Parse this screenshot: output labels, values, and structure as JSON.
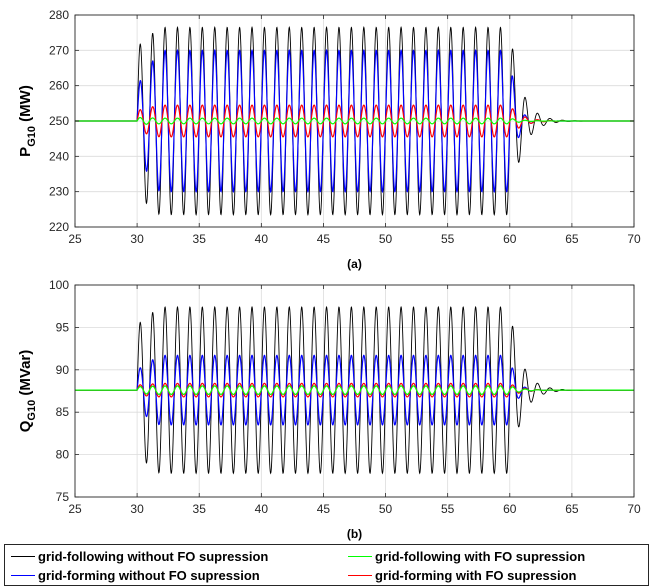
{
  "chart_data": [
    {
      "type": "line",
      "caption": "(a)",
      "ylabel_main": "P",
      "ylabel_sub": "G10",
      "ylabel_unit": " (MW)",
      "xlim": [
        25,
        70
      ],
      "ylim": [
        220,
        280
      ],
      "xticks": [
        25,
        30,
        35,
        40,
        45,
        50,
        55,
        60,
        65,
        70
      ],
      "yticks": [
        220,
        230,
        240,
        250,
        260,
        270,
        280
      ],
      "grid": true,
      "oscillation": {
        "start": 30,
        "end": 60,
        "frequency_hz": 1.0
      },
      "series": [
        {
          "name": "grid-following without FO supression",
          "color": "#000000",
          "baseline": 250,
          "amplitude": 26.5,
          "peak_first": 271,
          "decay_tail": 0.9
        },
        {
          "name": "grid-forming without FO supression",
          "color": "#0000ff",
          "baseline": 250,
          "amplitude": 20,
          "peak_first": 260,
          "decay_tail": 0.5
        },
        {
          "name": "grid-forming with FO supression",
          "color": "#ff0000",
          "baseline": 250,
          "amplitude": 4.5,
          "peak_first": 253,
          "decay_tail": 0.9
        },
        {
          "name": "grid-following with FO supression",
          "color": "#00ff00",
          "baseline": 250,
          "amplitude": 0.8,
          "peak_first": 251,
          "decay_tail": 0.9
        }
      ]
    },
    {
      "type": "line",
      "caption": "(b)",
      "ylabel_main": "Q",
      "ylabel_sub": "G10",
      "ylabel_unit": " (MVar)",
      "xlim": [
        25,
        70
      ],
      "ylim": [
        75,
        100
      ],
      "xticks": [
        25,
        30,
        35,
        40,
        45,
        50,
        55,
        60,
        65,
        70
      ],
      "yticks": [
        75,
        80,
        85,
        90,
        95,
        100
      ],
      "grid": true,
      "oscillation": {
        "start": 30,
        "end": 60,
        "frequency_hz": 1.0
      },
      "series": [
        {
          "name": "grid-following without FO supression",
          "color": "#000000",
          "baseline": 87.6,
          "amplitude": 9.8,
          "peak_first": 95.3,
          "decay_tail": 0.9
        },
        {
          "name": "grid-forming without FO supression",
          "color": "#0000ff",
          "baseline": 87.6,
          "amplitude": 4.1,
          "peak_first": 90.0,
          "decay_tail": 0.5
        },
        {
          "name": "grid-forming with FO supression",
          "color": "#ff0000",
          "baseline": 87.6,
          "amplitude": 0.8,
          "peak_first": 88.2,
          "decay_tail": 0.9
        },
        {
          "name": "grid-following with FO supression",
          "color": "#00ff00",
          "baseline": 87.6,
          "amplitude": 0.5,
          "peak_first": 88.0,
          "decay_tail": 0.9
        }
      ]
    }
  ],
  "legend": [
    {
      "label": "grid-following without FO supression",
      "color": "#000000"
    },
    {
      "label": "grid-following with FO supression",
      "color": "#00ff00"
    },
    {
      "label": "grid-forming without FO supression",
      "color": "#0000ff"
    },
    {
      "label": "grid-forming with FO supression",
      "color": "#ff0000"
    }
  ]
}
